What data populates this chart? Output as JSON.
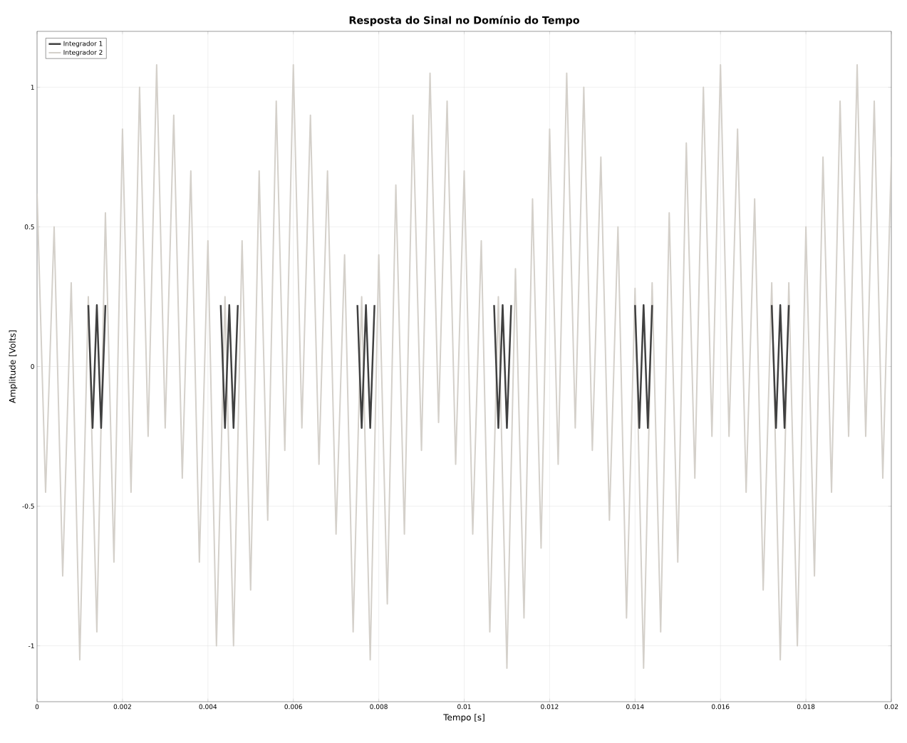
{
  "chart_data": {
    "type": "line",
    "title": "Resposta do Sinal no Domínio do Tempo",
    "xlabel": "Tempo [s]",
    "ylabel": "Amplitude [Volts]",
    "xlim": [
      0,
      0.02
    ],
    "ylim": [
      -1.2,
      1.2
    ],
    "xticks": [
      0,
      0.002,
      0.004,
      0.006,
      0.008,
      0.01,
      0.012,
      0.014,
      0.016,
      0.018,
      0.02
    ],
    "yticks": [
      -1,
      -0.5,
      0,
      0.5,
      1
    ],
    "grid": true,
    "legend": "top left",
    "line_style": "solid",
    "marker": "none",
    "series": [
      {
        "name": "Integrador 1",
        "color": "#404040",
        "x": [
          0.0012,
          0.0013,
          0.0014,
          0.0015,
          0.0016,
          0.003,
          0.0043,
          0.0044,
          0.0045,
          0.0046,
          0.0047,
          0.006,
          0.0075,
          0.0076,
          0.0077,
          0.0078,
          0.0079,
          0.009,
          0.0107,
          0.0108,
          0.0109,
          0.011,
          0.0111,
          0.0125,
          0.014,
          0.0141,
          0.0142,
          0.0143,
          0.0144,
          0.0155,
          0.0172,
          0.0173,
          0.0174,
          0.0175,
          0.0176
        ],
        "values": [
          0.22,
          -0.22,
          0.22,
          -0.22,
          0.22,
          null,
          0.22,
          -0.22,
          0.22,
          -0.22,
          0.22,
          null,
          0.22,
          -0.22,
          0.22,
          -0.22,
          0.22,
          null,
          0.22,
          -0.22,
          0.22,
          -0.22,
          0.22,
          null,
          0.22,
          -0.22,
          0.22,
          -0.22,
          0.22,
          null,
          0.22,
          -0.22,
          0.22,
          -0.22,
          0.22
        ]
      },
      {
        "name": "Integrador 2",
        "color": "#d4d0ca",
        "x": [
          0,
          0.0002,
          0.0004,
          0.0006,
          0.0008,
          0.001,
          0.0012,
          0.0014,
          0.0016,
          0.0018,
          0.002,
          0.0022,
          0.0024,
          0.0026,
          0.0028,
          0.003,
          0.0032,
          0.0034,
          0.0036,
          0.0038,
          0.004,
          0.0042,
          0.0044,
          0.0046,
          0.0048,
          0.005,
          0.0052,
          0.0054,
          0.0056,
          0.0058,
          0.006,
          0.0062,
          0.0064,
          0.0066,
          0.0068,
          0.007,
          0.0072,
          0.0074,
          0.0076,
          0.0078,
          0.008,
          0.0082,
          0.0084,
          0.0086,
          0.0088,
          0.009,
          0.0092,
          0.0094,
          0.0096,
          0.0098,
          0.01,
          0.0102,
          0.0104,
          0.0106,
          0.0108,
          0.011,
          0.0112,
          0.0114,
          0.0116,
          0.0118,
          0.012,
          0.0122,
          0.0124,
          0.0126,
          0.0128,
          0.013,
          0.0132,
          0.0134,
          0.0136,
          0.0138,
          0.014,
          0.0142,
          0.0144,
          0.0146,
          0.0148,
          0.015,
          0.0152,
          0.0154,
          0.0156,
          0.0158,
          0.016,
          0.0162,
          0.0164,
          0.0166,
          0.0168,
          0.017,
          0.0172,
          0.0174,
          0.0176,
          0.0178,
          0.018,
          0.0182,
          0.0184,
          0.0186,
          0.0188,
          0.019,
          0.0192,
          0.0194,
          0.0196,
          0.0198,
          0.02
        ],
        "values": [
          0.62,
          -0.45,
          0.5,
          -0.75,
          0.3,
          -1.05,
          0.25,
          -0.95,
          0.55,
          -0.7,
          0.85,
          -0.45,
          1.0,
          -0.25,
          1.08,
          -0.22,
          0.9,
          -0.4,
          0.7,
          -0.7,
          0.45,
          -1.0,
          0.25,
          -1.0,
          0.45,
          -0.8,
          0.7,
          -0.55,
          0.95,
          -0.3,
          1.08,
          -0.22,
          0.9,
          -0.35,
          0.7,
          -0.6,
          0.4,
          -0.95,
          0.25,
          -1.05,
          0.4,
          -0.85,
          0.65,
          -0.6,
          0.9,
          -0.3,
          1.05,
          -0.2,
          0.95,
          -0.35,
          0.7,
          -0.6,
          0.45,
          -0.95,
          0.25,
          -1.08,
          0.35,
          -0.9,
          0.6,
          -0.65,
          0.85,
          -0.35,
          1.05,
          -0.22,
          1.0,
          -0.3,
          0.75,
          -0.55,
          0.5,
          -0.9,
          0.28,
          -1.08,
          0.3,
          -0.95,
          0.55,
          -0.7,
          0.8,
          -0.4,
          1.0,
          -0.25,
          1.08,
          -0.25,
          0.85,
          -0.45,
          0.6,
          -0.8,
          0.3,
          -1.05,
          0.3,
          -1.0,
          0.5,
          -0.75,
          0.75,
          -0.45,
          0.95,
          -0.25,
          1.08,
          -0.25,
          0.95,
          -0.4,
          0.75
        ]
      }
    ]
  }
}
